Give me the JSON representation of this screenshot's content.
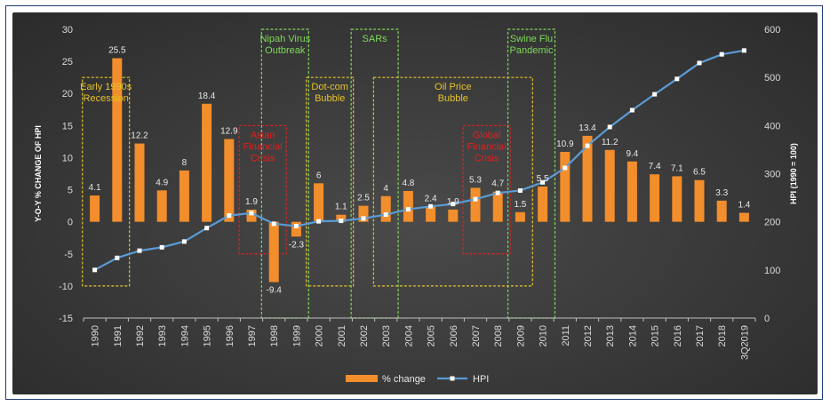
{
  "chart_data": {
    "type": "bar+line",
    "categories": [
      "1990",
      "1991",
      "1992",
      "1993",
      "1994",
      "1995",
      "1996",
      "1997",
      "1998",
      "1999",
      "2000",
      "2001",
      "2002",
      "2003",
      "2004",
      "2005",
      "2006",
      "2007",
      "2008",
      "2009",
      "2010",
      "2011",
      "2012",
      "2013",
      "2014",
      "2015",
      "2016",
      "2017",
      "2018",
      "3Q2019"
    ],
    "series": [
      {
        "name": "% change",
        "type": "bar",
        "axis": "left",
        "color": "#f28e2b",
        "values": [
          4.1,
          25.5,
          12.2,
          4.9,
          8,
          18.4,
          12.9,
          1.9,
          -9.4,
          -2.3,
          6,
          1.1,
          2.5,
          4,
          4.8,
          2.4,
          1.9,
          5.3,
          4.7,
          1.5,
          5.5,
          10.9,
          13.4,
          11.2,
          9.4,
          7.4,
          7.1,
          6.5,
          3.3,
          1.4
        ],
        "labels": [
          "4.1",
          "25.5",
          "12.2",
          "4.9",
          "8",
          "18.4",
          "12.9",
          "1.9",
          "-9.4",
          "-2.3",
          "6",
          "1.1",
          "2.5",
          "4",
          "4.8",
          "2.4",
          "1.9",
          "5.3",
          "4.7",
          "1.5",
          "5.5",
          "10.9",
          "13.4",
          "11.2",
          "9.4",
          "7.4",
          "7.1",
          "6.5",
          "3.3",
          "1.4"
        ]
      },
      {
        "name": "HPI",
        "type": "line",
        "axis": "right",
        "color": "#5b9bd5",
        "values": [
          100,
          125,
          140,
          147,
          159,
          187,
          213,
          218,
          196,
          191,
          201,
          202,
          207,
          215,
          226,
          232,
          237,
          247,
          260,
          265,
          282,
          312,
          358,
          397,
          432,
          465,
          497,
          530,
          548,
          556
        ]
      }
    ],
    "y_left": {
      "label": "Y-O-Y % CHANGE OF HPI",
      "ticks": [
        "30",
        "25",
        "20",
        "15",
        "10",
        "5",
        "0",
        "-5",
        "-10",
        "-15"
      ],
      "ylim": [
        -15,
        30
      ]
    },
    "y_right": {
      "label": "HPI (1990 = 100)",
      "ticks": [
        "600",
        "500",
        "400",
        "300",
        "200",
        "100",
        "0"
      ],
      "ylim": [
        0,
        600
      ]
    },
    "legend": {
      "placement": "bottom-center",
      "items": [
        "% change",
        "HPI"
      ]
    },
    "grid": false,
    "annotations": [
      {
        "lines": [
          "Early 1990s",
          "Recession"
        ],
        "color": "#e6c229",
        "start": "1990",
        "end": "1991",
        "y_top": 22.5,
        "y_bottom": -10
      },
      {
        "lines": [
          "Asian",
          "Financial",
          "Crisis"
        ],
        "color": "#e02020",
        "start": "1997",
        "end": "1998",
        "y_top": 15,
        "y_bottom": -5
      },
      {
        "lines": [
          "Nipah Virus",
          "Outbreak"
        ],
        "color": "#7ed957",
        "start": "1998",
        "end": "1999",
        "y_top": 30,
        "y_bottom": -15
      },
      {
        "lines": [
          "Dot-com",
          "Bubble"
        ],
        "color": "#e6c229",
        "start": "2000",
        "end": "2001",
        "y_top": 22.5,
        "y_bottom": -10
      },
      {
        "lines": [
          "SARs"
        ],
        "color": "#7ed957",
        "start": "2002",
        "end": "2003",
        "y_top": 30,
        "y_bottom": -15
      },
      {
        "lines": [
          "Oil Price",
          "Bubble"
        ],
        "color": "#e6c229",
        "start": "2003",
        "end": "2009",
        "y_top": 22.5,
        "y_bottom": -10
      },
      {
        "lines": [
          "Global",
          "Financial",
          "Crisis"
        ],
        "color": "#e02020",
        "start": "2007",
        "end": "2008",
        "y_top": 15,
        "y_bottom": -5
      },
      {
        "lines": [
          "Swine Flu",
          "Pandemic"
        ],
        "color": "#7ed957",
        "start": "2009",
        "end": "2010",
        "y_top": 30,
        "y_bottom": -15
      }
    ]
  }
}
